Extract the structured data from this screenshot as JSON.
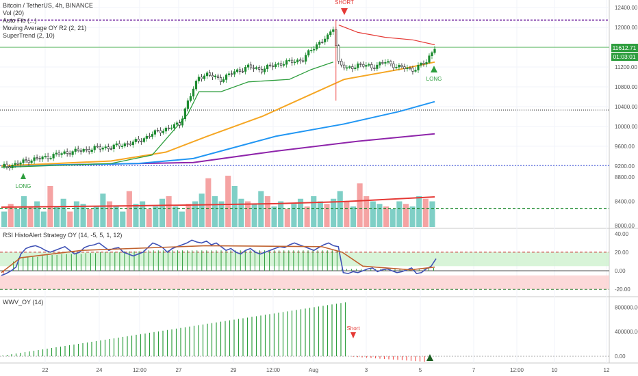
{
  "legend": {
    "symbol": "Bitcoin / TetherUS, 4h, BINANCE",
    "lines": [
      "Vol (20)",
      "Auto Fib (...)",
      "Moving Average OY R2 (2, 21)",
      "SuperTrend (2, 10)"
    ]
  },
  "panes": {
    "rsi_title": "RSI HistoAlert Strategy OY (14, -5, 5, 1, 12)",
    "wwv_title": "WWV_OY (14)"
  },
  "signals": {
    "short_top": "SHORT",
    "long_left": "LONG",
    "long_right": "LONG",
    "short_wwv": "Short"
  },
  "price_labels": {
    "last": "11612.71",
    "countdown": "01:03:01"
  },
  "colors": {
    "up": "#26a69a",
    "down": "#ef5350",
    "candle_up": "#1b8a2e",
    "ema_orange": "#f5a623",
    "ema_blue": "#2196f3",
    "ema_purple": "#8e24aa",
    "supertrend_green": "#2e9e3e",
    "supertrend_red": "#e53935",
    "fib_purple": "#6a1b9a",
    "rsi_line": "#3f51b5",
    "rsi_signal": "#c0622f"
  },
  "chart_data": [
    {
      "type": "candlestick",
      "title": "Bitcoin / TetherUS, 4h, BINANCE",
      "yticks": [
        9200,
        9600,
        10000,
        10400,
        10800,
        11200,
        11600,
        12000,
        12400
      ],
      "ylim": [
        9100,
        12500
      ],
      "xticks": [
        "22",
        "24",
        "12:00",
        "27",
        "29",
        "12:00",
        "Aug",
        "3",
        "5",
        "7",
        "12:00",
        "10",
        "12"
      ],
      "hlines": [
        12150,
        10330,
        9210,
        11600
      ],
      "approx_path": [
        {
          "t": 0,
          "close": 9180
        },
        {
          "t": 5,
          "close": 9230
        },
        {
          "t": 10,
          "close": 9320
        },
        {
          "t": 15,
          "close": 9360
        },
        {
          "t": 20,
          "close": 9430
        },
        {
          "t": 25,
          "close": 9480
        },
        {
          "t": 30,
          "close": 9520
        },
        {
          "t": 35,
          "close": 9560
        },
        {
          "t": 40,
          "close": 9580
        },
        {
          "t": 45,
          "close": 9640
        },
        {
          "t": 50,
          "close": 9700
        },
        {
          "t": 55,
          "close": 9850
        },
        {
          "t": 60,
          "close": 9950
        },
        {
          "t": 65,
          "close": 10050
        },
        {
          "t": 68,
          "close": 10500
        },
        {
          "t": 72,
          "close": 11000
        },
        {
          "t": 75,
          "close": 11050
        },
        {
          "t": 80,
          "close": 10950
        },
        {
          "t": 85,
          "close": 11100
        },
        {
          "t": 90,
          "close": 11200
        },
        {
          "t": 95,
          "close": 11150
        },
        {
          "t": 100,
          "close": 11250
        },
        {
          "t": 105,
          "close": 11300
        },
        {
          "t": 110,
          "close": 11350
        },
        {
          "t": 113,
          "close": 11550
        },
        {
          "t": 116,
          "close": 11700
        },
        {
          "t": 119,
          "close": 11800
        },
        {
          "t": 121,
          "close": 12000
        },
        {
          "t": 123,
          "close": 11300
        },
        {
          "t": 126,
          "close": 11150
        },
        {
          "t": 130,
          "close": 11250
        },
        {
          "t": 135,
          "close": 11200
        },
        {
          "t": 140,
          "close": 11300
        },
        {
          "t": 145,
          "close": 11200
        },
        {
          "t": 150,
          "close": 11150
        },
        {
          "t": 155,
          "close": 11300
        },
        {
          "t": 158,
          "close": 11612
        }
      ],
      "series": [
        {
          "name": "orange_ma",
          "points": [
            [
              0,
              9200
            ],
            [
              40,
              9300
            ],
            [
              60,
              9480
            ],
            [
              75,
              9800
            ],
            [
              95,
              10200
            ],
            [
              115,
              10700
            ],
            [
              125,
              10950
            ],
            [
              145,
              11150
            ],
            [
              158,
              11300
            ]
          ]
        },
        {
          "name": "blue_ma",
          "points": [
            [
              0,
              9200
            ],
            [
              50,
              9250
            ],
            [
              70,
              9350
            ],
            [
              100,
              9800
            ],
            [
              125,
              10050
            ],
            [
              145,
              10300
            ],
            [
              158,
              10500
            ]
          ]
        },
        {
          "name": "purple_ma",
          "points": [
            [
              0,
              9200
            ],
            [
              70,
              9270
            ],
            [
              100,
              9500
            ],
            [
              130,
              9700
            ],
            [
              158,
              9850
            ]
          ]
        },
        {
          "name": "supertrend_green",
          "points": [
            [
              0,
              9170
            ],
            [
              40,
              9250
            ],
            [
              55,
              9420
            ],
            [
              68,
              10250
            ],
            [
              72,
              10700
            ],
            [
              80,
              10700
            ],
            [
              90,
              10900
            ],
            [
              105,
              10950
            ],
            [
              113,
              11150
            ],
            [
              121,
              11300
            ]
          ]
        },
        {
          "name": "supertrend_red",
          "points": [
            [
              123,
              12050
            ],
            [
              130,
              11900
            ],
            [
              140,
              11800
            ],
            [
              150,
              11750
            ],
            [
              158,
              11650
            ]
          ]
        }
      ]
    },
    {
      "type": "bar",
      "title": "Vol (20)",
      "yticks": [
        8000,
        8400,
        8800
      ],
      "ylim": [
        7980,
        8900
      ],
      "values": [
        0.3,
        0.45,
        0.35,
        0.6,
        0.4,
        0.5,
        0.3,
        0.8,
        0.4,
        0.55,
        0.3,
        0.5,
        0.45,
        0.35,
        0.4,
        0.65,
        0.5,
        0.4,
        0.3,
        0.7,
        0.45,
        0.5,
        0.35,
        0.4,
        0.55,
        0.6,
        0.4,
        0.3,
        0.45,
        0.5,
        0.65,
        0.95,
        0.6,
        0.5,
        1.0,
        0.8,
        0.55,
        0.5,
        0.45,
        0.7,
        0.6,
        0.4,
        0.5,
        0.35,
        0.45,
        0.55,
        0.4,
        0.6,
        0.5,
        0.45,
        0.55,
        0.7,
        0.5,
        0.4,
        0.85,
        0.6,
        0.5,
        0.45,
        0.4,
        0.35,
        0.5,
        0.45,
        0.4,
        0.6,
        0.55,
        0.5
      ],
      "hline": 8280
    },
    {
      "type": "line",
      "title": "RSI HistoAlert Strategy OY (14, -5, 5, 1, 12)",
      "yticks": [
        -20,
        0,
        20,
        40
      ],
      "ylim": [
        -25,
        45
      ],
      "hlines": [
        20,
        5,
        -5,
        -20
      ],
      "rsi": [
        -5,
        -3,
        0,
        4,
        18,
        24,
        26,
        27,
        25,
        22,
        20,
        22,
        24,
        26,
        22,
        18,
        20,
        25,
        27,
        28,
        30,
        26,
        22,
        24,
        25,
        20,
        18,
        16,
        18,
        20,
        25,
        30,
        28,
        25,
        20,
        24,
        26,
        28,
        30,
        33,
        31,
        30,
        32,
        28,
        30,
        26,
        22,
        24,
        20,
        18,
        22,
        24,
        20,
        18,
        20,
        22,
        24,
        26,
        25,
        28,
        30,
        28,
        26,
        24,
        22,
        25,
        28,
        30,
        27,
        26,
        -2,
        -3,
        -1,
        -2,
        0,
        2,
        3,
        -1,
        1,
        2,
        0,
        -2,
        -1,
        1,
        3,
        -3,
        -2,
        2,
        5,
        13
      ],
      "histogram": [
        -3,
        0,
        10,
        14,
        15,
        15,
        15,
        15,
        16,
        17,
        17,
        17,
        18,
        18,
        18,
        18,
        18,
        19,
        19,
        19,
        20,
        20,
        20,
        20,
        20,
        21,
        21,
        21,
        21,
        22,
        22,
        22,
        22,
        22,
        22,
        22,
        22,
        22,
        22,
        22,
        22,
        22,
        22,
        22,
        22,
        22,
        22,
        22,
        22,
        22,
        22,
        22,
        22,
        22,
        22,
        22,
        22,
        22,
        22,
        22,
        22,
        22,
        22,
        22,
        22,
        22,
        22,
        22,
        22,
        22,
        2,
        2,
        2,
        2,
        2,
        2,
        2,
        2,
        2,
        2,
        2,
        2,
        2,
        2,
        2,
        2,
        2,
        2,
        3,
        3
      ]
    },
    {
      "type": "bar",
      "title": "WWV_OY (14)",
      "yticks": [
        0,
        400000,
        800000
      ],
      "ylim": [
        -100000,
        950000
      ],
      "values_up_start": 10000,
      "values_up_end": 880000,
      "up_count": 78,
      "down_values": [
        -10000,
        -15000,
        -20000,
        -25000,
        -30000,
        -35000,
        -40000,
        -45000,
        -50000,
        -55000,
        -60000,
        -65000,
        -70000,
        -75000,
        -80000,
        -85000,
        -90000
      ]
    }
  ]
}
